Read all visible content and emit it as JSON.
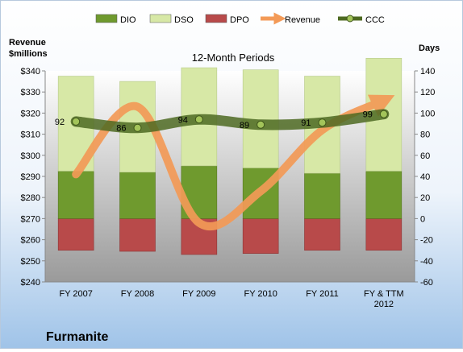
{
  "company": "Furmanite",
  "colors": {
    "dio": "#6f9a2e",
    "dso": "#d7e8a6",
    "dpo": "#b84a4a",
    "revenue": "#f39a57",
    "ccc": "#4e6a22",
    "plot_top": "#ffffff",
    "plot_bottom": "#9a9a9a"
  },
  "chart_data": {
    "type": "bar",
    "title": "12-Month Periods",
    "left_axis": {
      "label_line1": "Revenue",
      "label_line2": "$millions",
      "range": [
        240,
        340
      ],
      "ticks": [
        "$240",
        "$250",
        "$260",
        "$270",
        "$280",
        "$290",
        "$300",
        "$310",
        "$320",
        "$330",
        "$340"
      ]
    },
    "right_axis": {
      "label": "Days",
      "range": [
        -60,
        140
      ],
      "ticks": [
        "-60",
        "-40",
        "-20",
        "0",
        "20",
        "40",
        "60",
        "80",
        "100",
        "120",
        "140"
      ]
    },
    "categories": [
      [
        "FY 2007"
      ],
      [
        "FY 2008"
      ],
      [
        "FY 2009"
      ],
      [
        "FY 2010"
      ],
      [
        "FY 2011"
      ],
      [
        "FY & TTM",
        "2012"
      ]
    ],
    "legend": [
      "DIO",
      "DSO",
      "DPO",
      "Revenue",
      "CCC"
    ],
    "legend_position": "top",
    "series": {
      "dio": [
        45,
        44,
        50,
        48,
        43,
        45
      ],
      "dso": [
        90,
        86,
        93,
        93,
        92,
        107
      ],
      "dpo": [
        -30,
        -31,
        -34,
        -33,
        -30,
        -30
      ],
      "revenue": [
        291,
        323,
        268,
        283,
        312,
        326
      ],
      "ccc": [
        92,
        86,
        94,
        89,
        91,
        99
      ]
    },
    "ccc_labels": [
      "92",
      "86",
      "94",
      "89",
      "91",
      "99"
    ]
  }
}
